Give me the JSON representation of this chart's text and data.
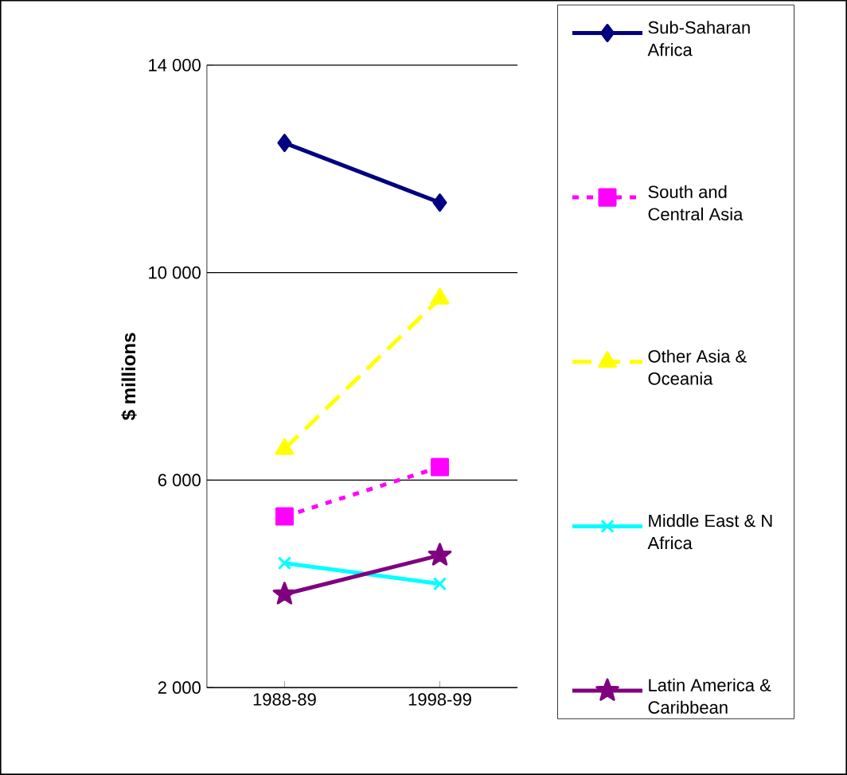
{
  "chart_data": {
    "type": "line",
    "ylabel": "$ millions",
    "categories": [
      "1988-89",
      "1998-99"
    ],
    "series": [
      {
        "name": "Sub-Saharan Africa",
        "color": "#000080",
        "values": [
          12500,
          11350
        ],
        "marker": "diamond",
        "line_style": "solid"
      },
      {
        "name": "South and Central Asia",
        "color": "#ff00ff",
        "values": [
          5300,
          6250
        ],
        "marker": "square",
        "line_style": "dotted"
      },
      {
        "name": "Other Asia & Oceania",
        "color": "#ffff00",
        "values": [
          6600,
          9500
        ],
        "marker": "triangle",
        "line_style": "dashed"
      },
      {
        "name": "Middle East & N Africa",
        "color": "#00ffff",
        "values": [
          4400,
          4000
        ],
        "marker": "cross",
        "line_style": "solid"
      },
      {
        "name": "Latin America & Caribbean",
        "color": "#800080",
        "values": [
          3800,
          4550
        ],
        "marker": "star",
        "line_style": "solid"
      }
    ],
    "ylim": [
      2000,
      14000
    ],
    "yticks": [
      {
        "value": 2000,
        "label": "2 000"
      },
      {
        "value": 6000,
        "label": "6 000"
      },
      {
        "value": 10000,
        "label": "10 000"
      },
      {
        "value": 14000,
        "label": "14 000"
      }
    ],
    "grid": "y",
    "legend": "right"
  }
}
